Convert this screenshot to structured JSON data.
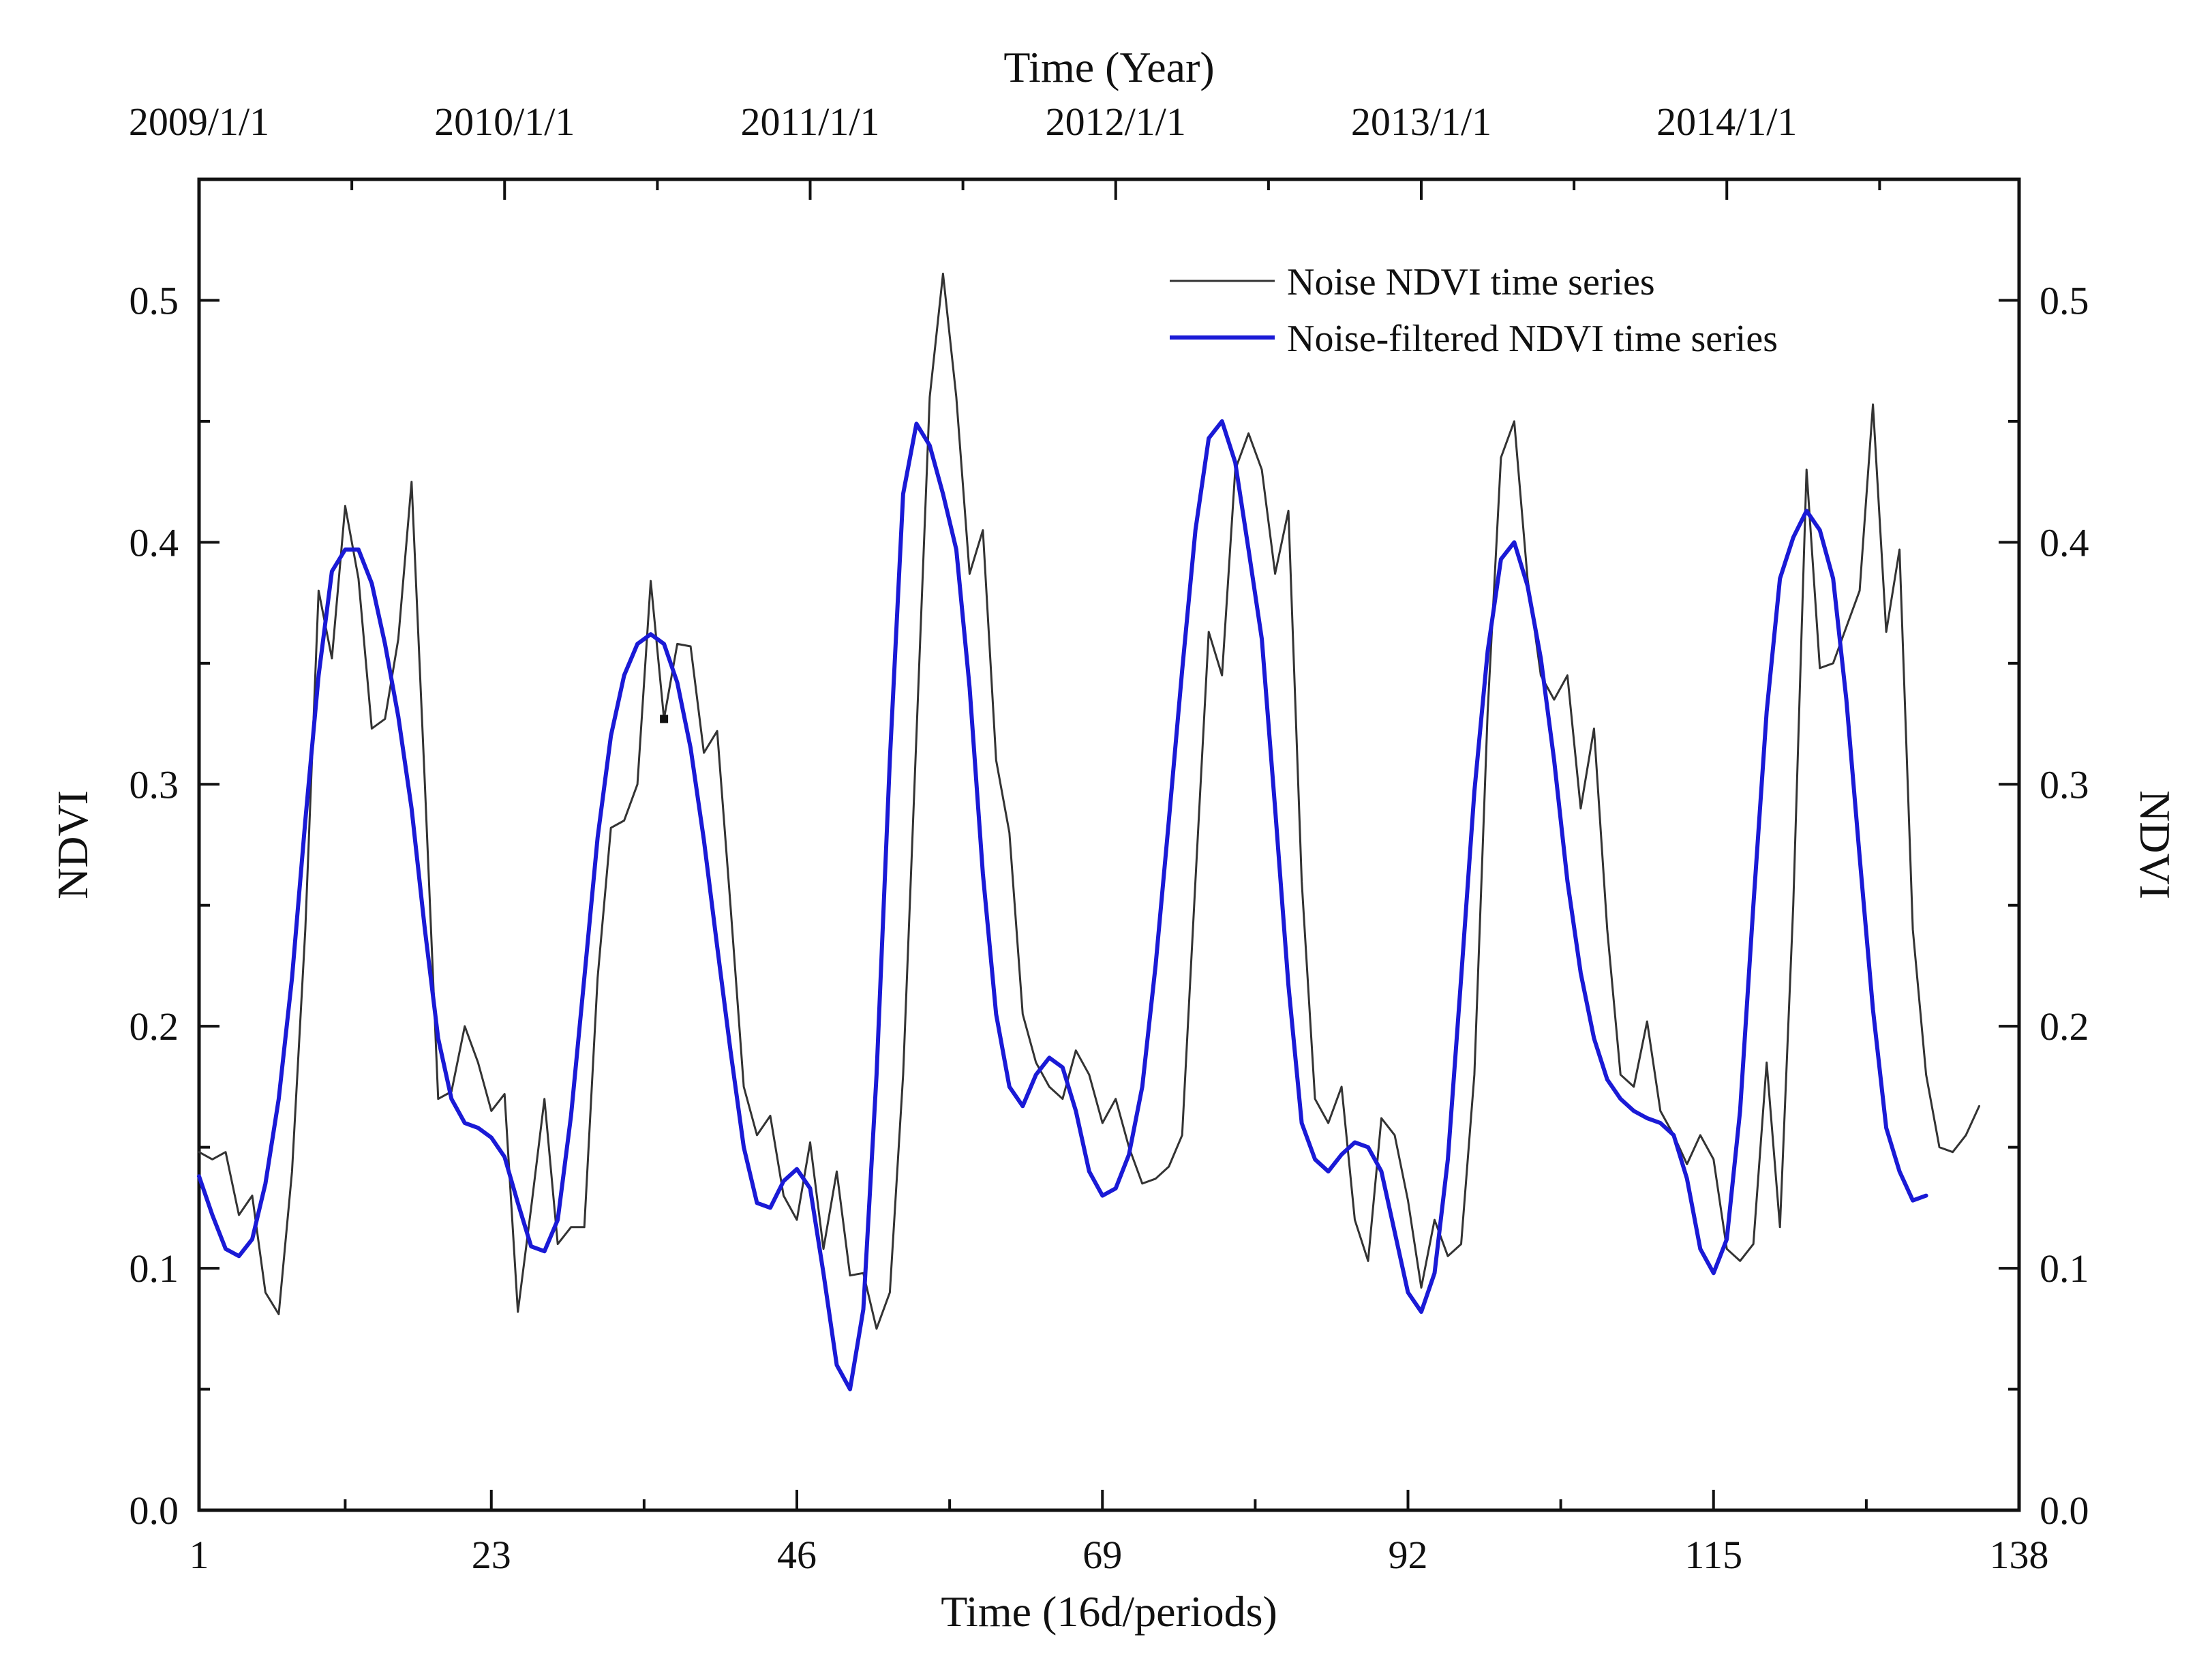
{
  "chart_data": {
    "type": "line",
    "title": "",
    "xlabel": "Time (16d/periods)",
    "ylabel": "NDVI",
    "ylabel_right": "NDVI",
    "top_axis_title": "Time (Year)",
    "xlim": [
      1,
      138
    ],
    "ylim": [
      0.0,
      0.55
    ],
    "x_ticks": [
      1,
      23,
      46,
      69,
      92,
      115,
      138
    ],
    "x_tick_labels": [
      "1",
      "23",
      "46",
      "69",
      "92",
      "115",
      "138"
    ],
    "y_ticks": [
      0.0,
      0.1,
      0.2,
      0.3,
      0.4,
      0.5
    ],
    "y_tick_labels": [
      "0.0",
      "0.1",
      "0.2",
      "0.3",
      "0.4",
      "0.5"
    ],
    "top_ticks": [
      1,
      24,
      47,
      70,
      93,
      116
    ],
    "top_tick_labels": [
      "2009/1/1",
      "2010/1/1",
      "2011/1/1",
      "2012/1/1",
      "2013/1/1",
      "2014/1/1"
    ],
    "legend_position": "top-right",
    "series": [
      {
        "name": "Noise NDVI time series",
        "color": "#333333",
        "points": [
          [
            1,
            0.148
          ],
          [
            2,
            0.145
          ],
          [
            3,
            0.148
          ],
          [
            4,
            0.122
          ],
          [
            5,
            0.13
          ],
          [
            6,
            0.09
          ],
          [
            7,
            0.081
          ],
          [
            8,
            0.14
          ],
          [
            9,
            0.24
          ],
          [
            10,
            0.38
          ],
          [
            11,
            0.352
          ],
          [
            12,
            0.415
          ],
          [
            13,
            0.385
          ],
          [
            14,
            0.323
          ],
          [
            15,
            0.327
          ],
          [
            16,
            0.36
          ],
          [
            17,
            0.425
          ],
          [
            18,
            0.3
          ],
          [
            19,
            0.17
          ],
          [
            20,
            0.173
          ],
          [
            21,
            0.2
          ],
          [
            22,
            0.185
          ],
          [
            23,
            0.165
          ],
          [
            24,
            0.172
          ],
          [
            25,
            0.082
          ],
          [
            26,
            0.125
          ],
          [
            27,
            0.17
          ],
          [
            28,
            0.11
          ],
          [
            29,
            0.117
          ],
          [
            30,
            0.117
          ],
          [
            31,
            0.22
          ],
          [
            32,
            0.282
          ],
          [
            33,
            0.285
          ],
          [
            34,
            0.3
          ],
          [
            35,
            0.384
          ],
          [
            36,
            0.327
          ],
          [
            37,
            0.358
          ],
          [
            38,
            0.357
          ],
          [
            39,
            0.313
          ],
          [
            40,
            0.322
          ],
          [
            41,
            0.25
          ],
          [
            42,
            0.175
          ],
          [
            43,
            0.155
          ],
          [
            44,
            0.163
          ],
          [
            45,
            0.13
          ],
          [
            46,
            0.12
          ],
          [
            47,
            0.152
          ],
          [
            48,
            0.108
          ],
          [
            49,
            0.14
          ],
          [
            50,
            0.097
          ],
          [
            51,
            0.098
          ],
          [
            52,
            0.075
          ],
          [
            53,
            0.09
          ],
          [
            54,
            0.18
          ],
          [
            55,
            0.32
          ],
          [
            56,
            0.46
          ],
          [
            57,
            0.511
          ],
          [
            58,
            0.46
          ],
          [
            59,
            0.387
          ],
          [
            60,
            0.405
          ],
          [
            61,
            0.31
          ],
          [
            62,
            0.28
          ],
          [
            63,
            0.205
          ],
          [
            64,
            0.185
          ],
          [
            65,
            0.175
          ],
          [
            66,
            0.17
          ],
          [
            67,
            0.19
          ],
          [
            68,
            0.18
          ],
          [
            69,
            0.16
          ],
          [
            70,
            0.17
          ],
          [
            71,
            0.15
          ],
          [
            72,
            0.135
          ],
          [
            73,
            0.137
          ],
          [
            74,
            0.142
          ],
          [
            75,
            0.155
          ],
          [
            76,
            0.26
          ],
          [
            77,
            0.363
          ],
          [
            78,
            0.345
          ],
          [
            79,
            0.43
          ],
          [
            80,
            0.445
          ],
          [
            81,
            0.43
          ],
          [
            82,
            0.387
          ],
          [
            83,
            0.413
          ],
          [
            84,
            0.26
          ],
          [
            85,
            0.17
          ],
          [
            86,
            0.16
          ],
          [
            87,
            0.175
          ],
          [
            88,
            0.12
          ],
          [
            89,
            0.103
          ],
          [
            90,
            0.162
          ],
          [
            91,
            0.155
          ],
          [
            92,
            0.128
          ],
          [
            93,
            0.092
          ],
          [
            94,
            0.12
          ],
          [
            95,
            0.105
          ],
          [
            96,
            0.11
          ],
          [
            97,
            0.18
          ],
          [
            98,
            0.33
          ],
          [
            99,
            0.435
          ],
          [
            100,
            0.45
          ],
          [
            101,
            0.385
          ],
          [
            102,
            0.345
          ],
          [
            103,
            0.335
          ],
          [
            104,
            0.345
          ],
          [
            105,
            0.29
          ],
          [
            106,
            0.323
          ],
          [
            107,
            0.24
          ],
          [
            108,
            0.18
          ],
          [
            109,
            0.175
          ],
          [
            110,
            0.202
          ],
          [
            111,
            0.165
          ],
          [
            112,
            0.155
          ],
          [
            113,
            0.143
          ],
          [
            114,
            0.155
          ],
          [
            115,
            0.145
          ],
          [
            116,
            0.108
          ],
          [
            117,
            0.103
          ],
          [
            118,
            0.11
          ],
          [
            119,
            0.185
          ],
          [
            120,
            0.117
          ],
          [
            121,
            0.25
          ],
          [
            122,
            0.43
          ],
          [
            123,
            0.348
          ],
          [
            124,
            0.35
          ],
          [
            125,
            0.365
          ],
          [
            126,
            0.38
          ],
          [
            127,
            0.457
          ],
          [
            128,
            0.363
          ],
          [
            129,
            0.397
          ],
          [
            130,
            0.24
          ],
          [
            131,
            0.18
          ],
          [
            132,
            0.15
          ],
          [
            133,
            0.148
          ],
          [
            134,
            0.155
          ],
          [
            135,
            0.167
          ]
        ]
      },
      {
        "name": "Noise-filtered NDVI time series",
        "color": "#1a1ad6",
        "points": [
          [
            1,
            0.138
          ],
          [
            2,
            0.122
          ],
          [
            3,
            0.108
          ],
          [
            4,
            0.105
          ],
          [
            5,
            0.112
          ],
          [
            6,
            0.135
          ],
          [
            7,
            0.17
          ],
          [
            8,
            0.22
          ],
          [
            9,
            0.285
          ],
          [
            10,
            0.345
          ],
          [
            11,
            0.388
          ],
          [
            12,
            0.397
          ],
          [
            13,
            0.397
          ],
          [
            14,
            0.383
          ],
          [
            15,
            0.358
          ],
          [
            16,
            0.328
          ],
          [
            17,
            0.29
          ],
          [
            18,
            0.24
          ],
          [
            19,
            0.195
          ],
          [
            20,
            0.17
          ],
          [
            21,
            0.16
          ],
          [
            22,
            0.158
          ],
          [
            23,
            0.154
          ],
          [
            24,
            0.146
          ],
          [
            25,
            0.127
          ],
          [
            26,
            0.109
          ],
          [
            27,
            0.107
          ],
          [
            28,
            0.12
          ],
          [
            29,
            0.163
          ],
          [
            30,
            0.22
          ],
          [
            31,
            0.278
          ],
          [
            32,
            0.32
          ],
          [
            33,
            0.345
          ],
          [
            34,
            0.358
          ],
          [
            35,
            0.362
          ],
          [
            36,
            0.358
          ],
          [
            37,
            0.342
          ],
          [
            38,
            0.315
          ],
          [
            39,
            0.277
          ],
          [
            40,
            0.233
          ],
          [
            41,
            0.19
          ],
          [
            42,
            0.15
          ],
          [
            43,
            0.127
          ],
          [
            44,
            0.125
          ],
          [
            45,
            0.136
          ],
          [
            46,
            0.141
          ],
          [
            47,
            0.133
          ],
          [
            48,
            0.098
          ],
          [
            49,
            0.06
          ],
          [
            50,
            0.05
          ],
          [
            51,
            0.083
          ],
          [
            52,
            0.18
          ],
          [
            53,
            0.31
          ],
          [
            54,
            0.42
          ],
          [
            55,
            0.449
          ],
          [
            56,
            0.44
          ],
          [
            57,
            0.42
          ],
          [
            58,
            0.397
          ],
          [
            59,
            0.34
          ],
          [
            60,
            0.263
          ],
          [
            61,
            0.205
          ],
          [
            62,
            0.175
          ],
          [
            63,
            0.167
          ],
          [
            64,
            0.18
          ],
          [
            65,
            0.187
          ],
          [
            66,
            0.183
          ],
          [
            67,
            0.165
          ],
          [
            68,
            0.14
          ],
          [
            69,
            0.13
          ],
          [
            70,
            0.133
          ],
          [
            71,
            0.147
          ],
          [
            72,
            0.175
          ],
          [
            73,
            0.225
          ],
          [
            74,
            0.285
          ],
          [
            75,
            0.347
          ],
          [
            76,
            0.405
          ],
          [
            77,
            0.443
          ],
          [
            78,
            0.45
          ],
          [
            79,
            0.433
          ],
          [
            80,
            0.397
          ],
          [
            81,
            0.36
          ],
          [
            82,
            0.29
          ],
          [
            83,
            0.217
          ],
          [
            84,
            0.16
          ],
          [
            85,
            0.145
          ],
          [
            86,
            0.14
          ],
          [
            87,
            0.147
          ],
          [
            88,
            0.152
          ],
          [
            89,
            0.15
          ],
          [
            90,
            0.14
          ],
          [
            91,
            0.115
          ],
          [
            92,
            0.09
          ],
          [
            93,
            0.082
          ],
          [
            94,
            0.098
          ],
          [
            95,
            0.145
          ],
          [
            96,
            0.22
          ],
          [
            97,
            0.297
          ],
          [
            98,
            0.355
          ],
          [
            99,
            0.393
          ],
          [
            100,
            0.4
          ],
          [
            101,
            0.382
          ],
          [
            102,
            0.352
          ],
          [
            103,
            0.31
          ],
          [
            104,
            0.26
          ],
          [
            105,
            0.222
          ],
          [
            106,
            0.195
          ],
          [
            107,
            0.178
          ],
          [
            108,
            0.17
          ],
          [
            109,
            0.165
          ],
          [
            110,
            0.162
          ],
          [
            111,
            0.16
          ],
          [
            112,
            0.155
          ],
          [
            113,
            0.137
          ],
          [
            114,
            0.108
          ],
          [
            115,
            0.098
          ],
          [
            116,
            0.112
          ],
          [
            117,
            0.165
          ],
          [
            118,
            0.25
          ],
          [
            119,
            0.33
          ],
          [
            120,
            0.385
          ],
          [
            121,
            0.402
          ],
          [
            122,
            0.413
          ],
          [
            123,
            0.405
          ],
          [
            124,
            0.385
          ],
          [
            125,
            0.335
          ],
          [
            126,
            0.27
          ],
          [
            127,
            0.207
          ],
          [
            128,
            0.158
          ],
          [
            129,
            0.14
          ],
          [
            130,
            0.128
          ],
          [
            131,
            0.13
          ]
        ]
      }
    ],
    "annotations": [
      {
        "type": "marker",
        "x": 36,
        "y": 0.327,
        "color": "#111111"
      }
    ]
  }
}
